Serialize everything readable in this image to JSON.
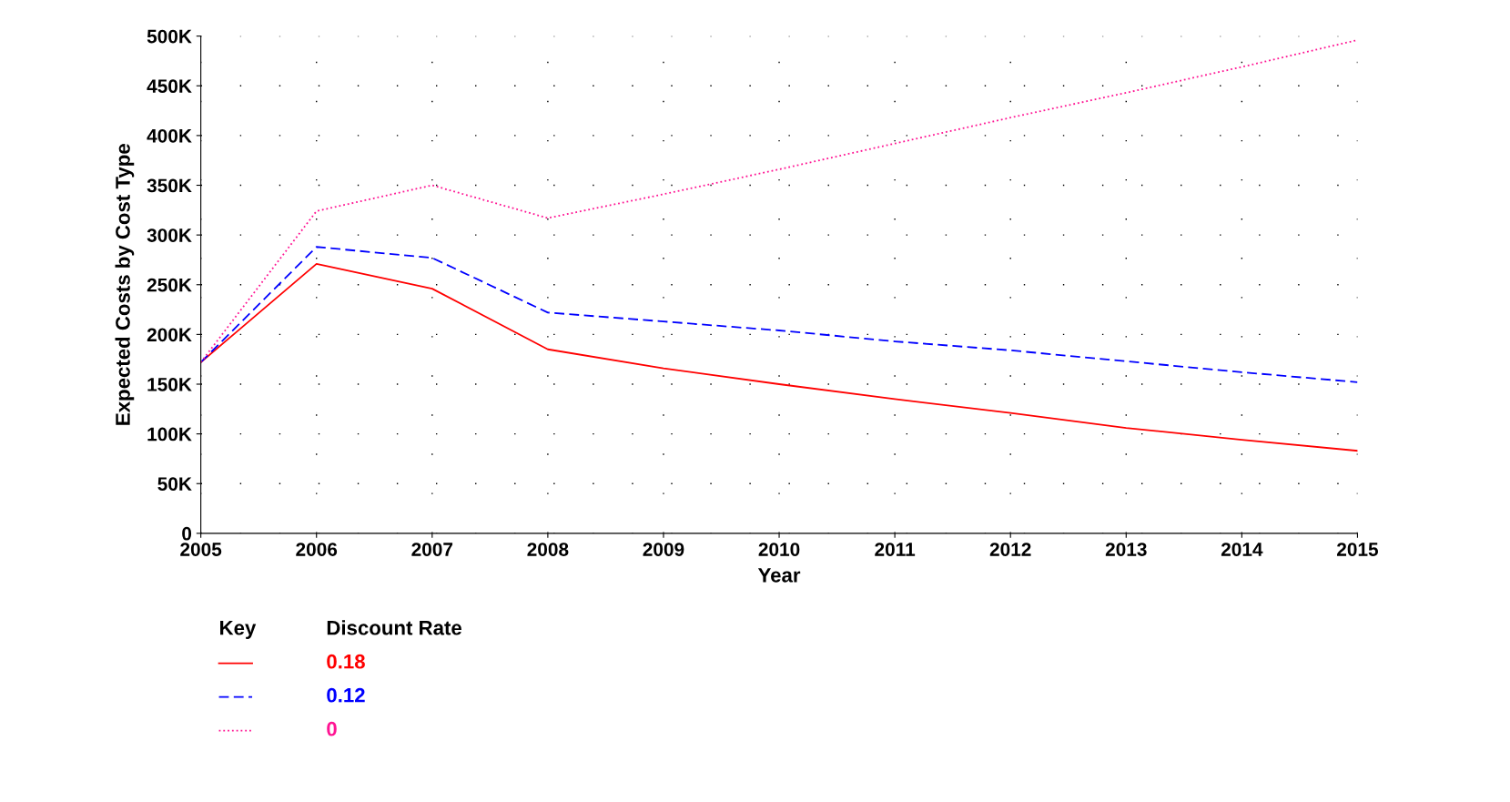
{
  "chart_data": {
    "type": "line",
    "xlabel": "Year",
    "ylabel": "Expected Costs by Cost Type",
    "legend_title": "Discount Rate",
    "annotations": [
      "Key"
    ],
    "x": [
      2005,
      2006,
      2007,
      2008,
      2009,
      2010,
      2011,
      2012,
      2013,
      2014,
      2015
    ],
    "series": [
      {
        "name": "0.18",
        "color": "#ff0000",
        "line_style": "solid",
        "values": [
          172000,
          271000,
          246000,
          185000,
          166000,
          150000,
          135000,
          121000,
          106000,
          94000,
          83000
        ]
      },
      {
        "name": "0.12",
        "color": "#0000ff",
        "line_style": "dashed",
        "values": [
          172000,
          288000,
          277000,
          222000,
          213000,
          204000,
          193000,
          184000,
          173000,
          162000,
          152000
        ]
      },
      {
        "name": "0",
        "color": "#ff1493",
        "line_style": "dotted",
        "values": [
          172000,
          324000,
          350000,
          317000,
          341000,
          366000,
          392000,
          418000,
          443000,
          469000,
          496000
        ]
      }
    ],
    "xlim": [
      2005,
      2015
    ],
    "xticks": [
      2005,
      2006,
      2007,
      2008,
      2009,
      2010,
      2011,
      2012,
      2013,
      2014,
      2015
    ],
    "ylim": [
      0,
      500000
    ],
    "yticks": [
      {
        "value": 0,
        "label": "0"
      },
      {
        "value": 50000,
        "label": "50K"
      },
      {
        "value": 100000,
        "label": "100K"
      },
      {
        "value": 150000,
        "label": "150K"
      },
      {
        "value": 200000,
        "label": "200K"
      },
      {
        "value": 250000,
        "label": "250K"
      },
      {
        "value": 300000,
        "label": "300K"
      },
      {
        "value": 350000,
        "label": "350K"
      },
      {
        "value": 400000,
        "label": "400K"
      },
      {
        "value": 450000,
        "label": "450K"
      },
      {
        "value": 500000,
        "label": "500K"
      }
    ],
    "grid": true,
    "legend": "bottom left",
    "marker": "none"
  }
}
